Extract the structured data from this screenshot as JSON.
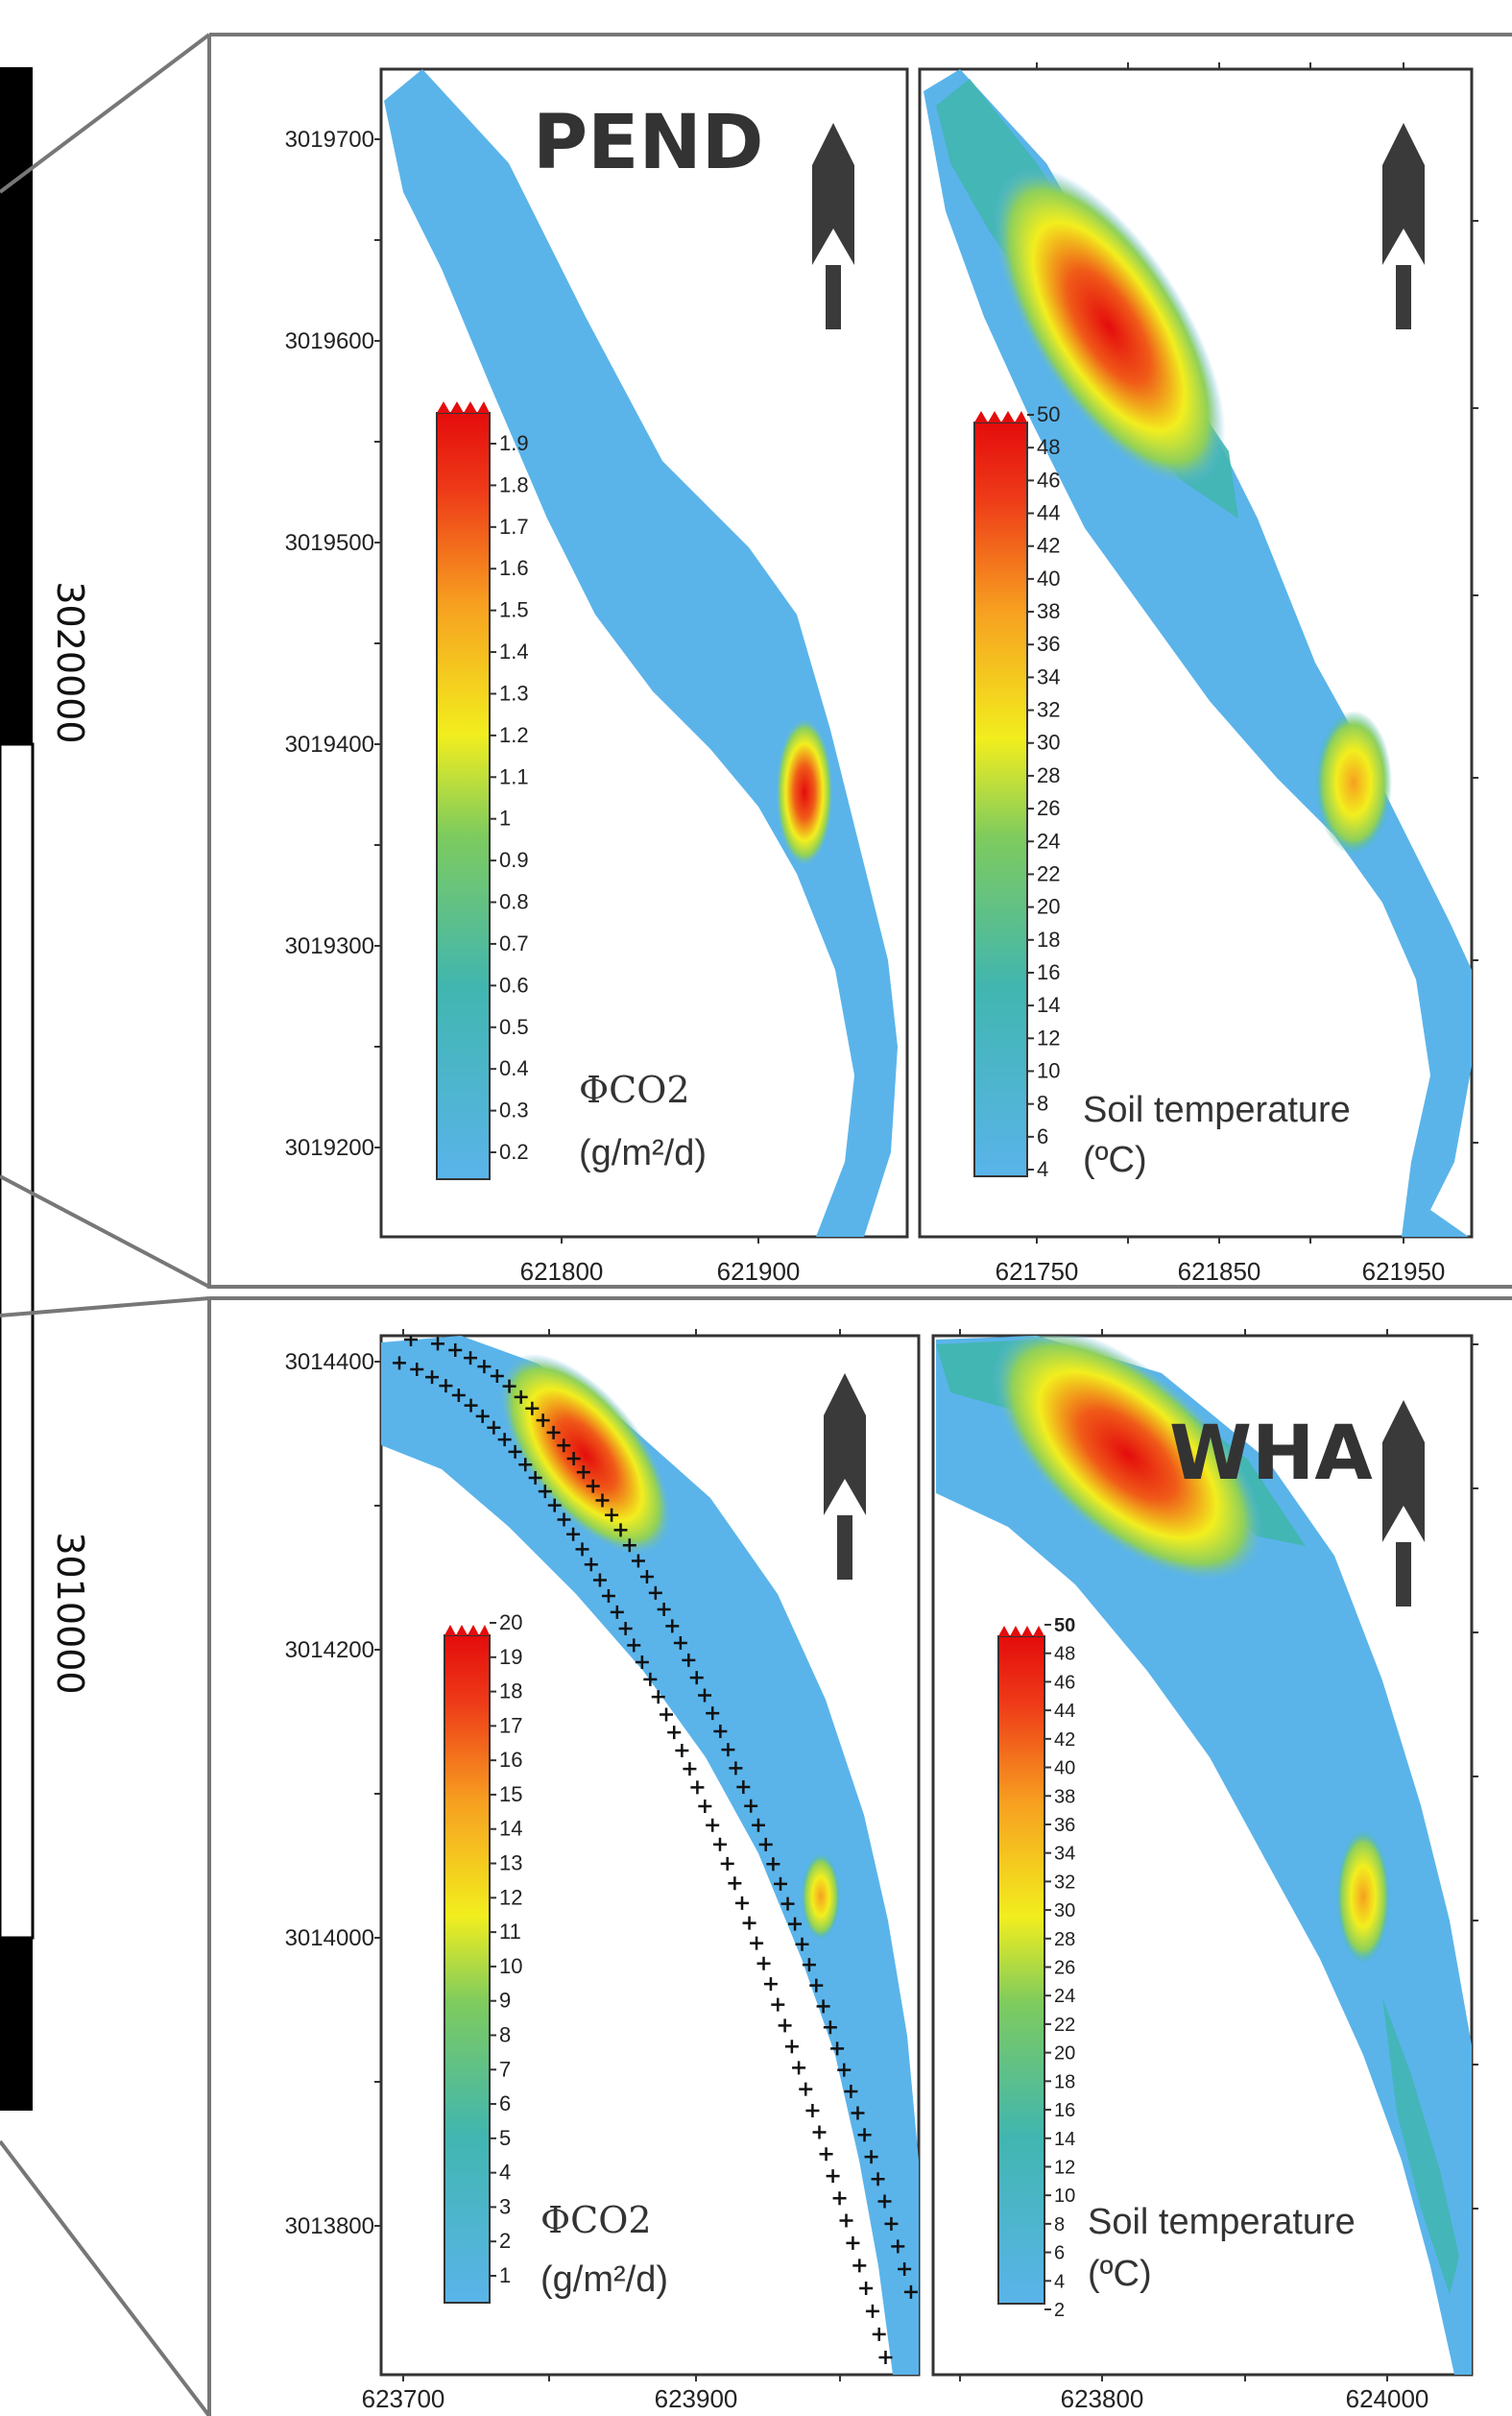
{
  "map_data": {
    "scale_bar": {
      "labels": [
        "3020000",
        "3010000"
      ]
    },
    "sites": [
      {
        "name": "PEND",
        "y_ticks": [
          "3019700",
          "3019600",
          "3019500",
          "3019400",
          "3019300",
          "3019200"
        ],
        "panels": [
          {
            "id": "pend-co2",
            "x_ticks": [
              "621800",
              "621900"
            ],
            "variable": "ΦCO2",
            "unit": "(g/m²/d)",
            "colorbar": [
              "1.9",
              "1.8",
              "1.7",
              "1.6",
              "1.5",
              "1.4",
              "1.3",
              "1.2",
              "1.1",
              "1",
              "0.9",
              "0.8",
              "0.7",
              "0.6",
              "0.5",
              "0.4",
              "0.3",
              "0.2"
            ]
          },
          {
            "id": "pend-temp",
            "x_ticks": [
              "621750",
              "621850",
              "621950"
            ],
            "variable": "Soil temperature",
            "unit": "(ºC)",
            "colorbar": [
              "50",
              "48",
              "46",
              "44",
              "42",
              "40",
              "38",
              "36",
              "34",
              "32",
              "30",
              "28",
              "26",
              "24",
              "22",
              "20",
              "18",
              "16",
              "14",
              "12",
              "10",
              "8",
              "6",
              "4"
            ]
          }
        ]
      },
      {
        "name": "WHA",
        "y_ticks": [
          "3014400",
          "3014200",
          "3014000",
          "3013800"
        ],
        "panels": [
          {
            "id": "wha-co2",
            "x_ticks": [
              "623700",
              "623900"
            ],
            "variable": "ΦCO2",
            "unit": "(g/m²/d)",
            "colorbar": [
              "20",
              "19",
              "18",
              "17",
              "16",
              "15",
              "14",
              "13",
              "12",
              "11",
              "10",
              "9",
              "8",
              "7",
              "6",
              "5",
              "4",
              "3",
              "2",
              "1"
            ]
          },
          {
            "id": "wha-temp",
            "x_ticks": [
              "623800",
              "624000"
            ],
            "variable": "Soil temperature",
            "unit": "(ºC)",
            "colorbar": [
              "50",
              "48",
              "46",
              "44",
              "42",
              "40",
              "38",
              "36",
              "34",
              "32",
              "30",
              "28",
              "26",
              "24",
              "22",
              "20",
              "18",
              "16",
              "14",
              "12",
              "10",
              "8",
              "6",
              "4",
              "2"
            ]
          }
        ]
      }
    ],
    "colors": {
      "low": "#5ab4ea",
      "mid": "#ffff20",
      "high": "#e40c0c",
      "frame": "#777777"
    }
  }
}
